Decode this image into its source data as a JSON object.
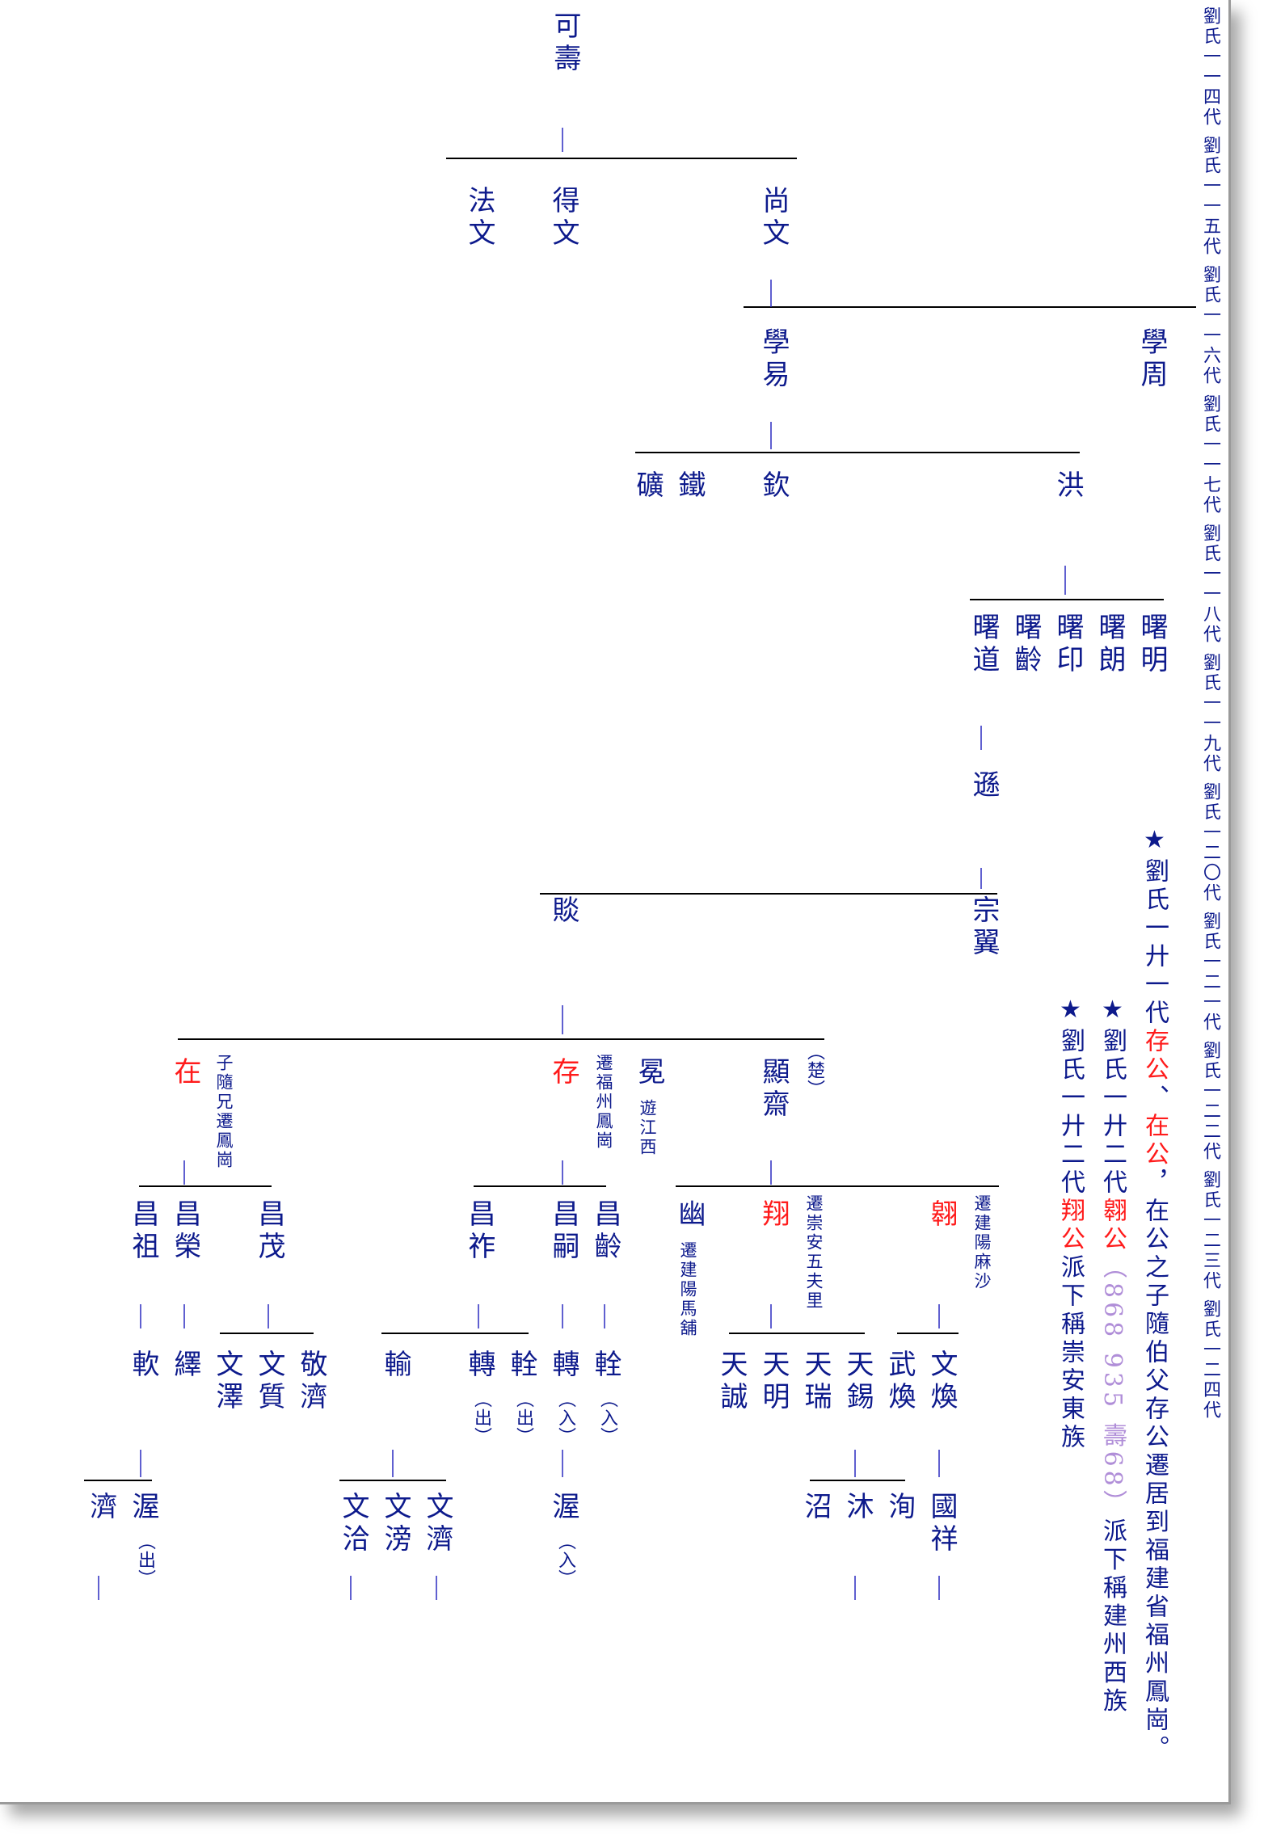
{
  "generation_strip": "劉氏一一四代 劉氏一一五代 劉氏一一六代 劉氏一一七代 劉氏一一八代 劉氏一一九代 劉氏一二〇代 劉氏一二一代 劉氏一二二代 劉氏一二三代 劉氏一二四代",
  "names": {
    "keshou": "可壽",
    "fawen": "法文",
    "dewen": "得文",
    "shangwen": "尚文",
    "xueyi": "學易",
    "xuezhou": "學周",
    "kuang": "礦",
    "tie": "鐵",
    "qin": "欽",
    "hong": "洪",
    "shudao": "曙道",
    "shuling": "曙齡",
    "shuyin": "曙印",
    "shulang": "曙朗",
    "shuming": "曙明",
    "xun": "遜",
    "dan": "賧",
    "zongyi": "宗翼",
    "zai": "在",
    "cun": "存",
    "mian": "冕",
    "xianzhai": "顯齋",
    "changzu": "昌祖",
    "changrong": "昌榮",
    "changmao": "昌茂",
    "changzuo": "昌祚",
    "changsi": "昌嗣",
    "changling": "昌齡",
    "you": "幽",
    "xiang": "翔",
    "ao": "翱",
    "ruan": "軟",
    "yi": "繹",
    "wenze": "文澤",
    "wenzhi": "文質",
    "jingji": "敬濟",
    "shu": "輸",
    "zhuan1": "轉",
    "quan1": "輇",
    "zhuan2": "轉",
    "quan2": "輇",
    "tiancheng": "天誠",
    "tianming": "天明",
    "tianrui": "天瑞",
    "tianxi": "天錫",
    "wuhuan": "武煥",
    "wenhuan": "文煥",
    "ji": "濟",
    "wo1": "渥",
    "wenqia": "文洽",
    "wenpang": "文滂",
    "wenji": "文濟",
    "wo2": "渥",
    "zhao": "沼",
    "mu": "沐",
    "xun2": "洵",
    "guoxiang": "國祥"
  },
  "notes": {
    "zai_note": "子隨兄遷鳳崗",
    "cun_note": "遷福州鳳崗",
    "mian_note": "遊江西",
    "chu_paren": "（楚）",
    "you_note": "遷建陽馬舖",
    "xiang_note": "遷崇安五夫里",
    "ao_note": "遷建陽麻沙",
    "out": "（出）",
    "in": "（入）"
  },
  "annotations": {
    "a1_star": "★",
    "a1_pre": "劉氏一廾一代",
    "a1_hl1": "存公",
    "a1_mid1": "、",
    "a1_hl2": "在公",
    "a1_post": "，在公之子隨伯父存公遷居到福建省福州鳳崗。",
    "a2_star": "★",
    "a2_pre": "劉氏一廾二代",
    "a2_hl": "翱公",
    "a2_paren_open": "（",
    "a2_years": "868 935 壽68",
    "a2_paren_close": "）",
    "a2_post": "派下稱建州西族",
    "a3_star": "★",
    "a3_pre": "劉氏一廾二代",
    "a3_hl": "翔公",
    "a3_post": "派下稱崇安東族"
  },
  "colors": {
    "text": "#0d1a8c",
    "highlight": "#ff1b1b",
    "years": "#b08ed8",
    "lines": "#000000",
    "stems": "#2a2ac0"
  }
}
